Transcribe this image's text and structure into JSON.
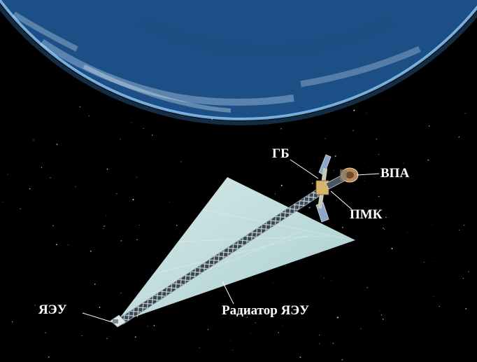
{
  "labels": {
    "gb": "ГБ",
    "vpa": "ВПА",
    "pmk": "ПМК",
    "yaeu": "ЯЭУ",
    "radiator": "Радиатор ЯЭУ"
  },
  "colors": {
    "space": "#000000",
    "earth_dark": "#0a2a55",
    "earth_light": "#4d9fd6",
    "atmosphere": "#7fc4ff",
    "radiator": "#c9e6e6",
    "label": "#ffffff"
  }
}
